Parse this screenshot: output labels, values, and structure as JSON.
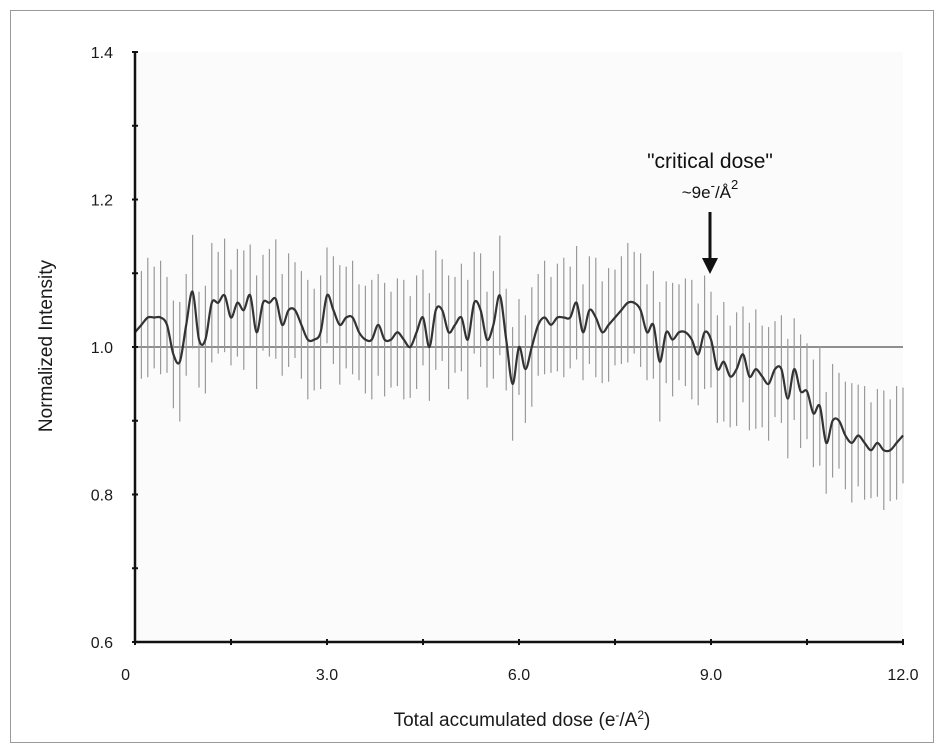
{
  "chart_data": {
    "type": "line",
    "xlabel": "Total accumulated dose (e⁻/A²)",
    "ylabel": "Normalized Intensity",
    "xlim": [
      0,
      12
    ],
    "ylim": [
      0.6,
      1.4
    ],
    "x_ticks": [
      0,
      3.0,
      6.0,
      9.0,
      12.0
    ],
    "x_tick_labels": [
      "0",
      "3.0",
      "6.0",
      "9.0",
      "12.0"
    ],
    "y_ticks": [
      0.6,
      0.8,
      1.0,
      1.2,
      1.4
    ],
    "y_tick_labels": [
      "0.6",
      "0.8",
      "1.0",
      "1.2",
      "1.4"
    ],
    "reference_line": {
      "y": 1.0
    },
    "annotation": {
      "line1": "\"critical dose\"",
      "line2": "~9e",
      "line2_sup": "-",
      "line2_mid": "/Å",
      "line2_sup2": "2",
      "x": 9.0
    },
    "series": [
      {
        "error": 0.065,
        "x": [
          0.0,
          0.1,
          0.2,
          0.3,
          0.4,
          0.5,
          0.6,
          0.7,
          0.8,
          0.9,
          1.0,
          1.1,
          1.2,
          1.3,
          1.4,
          1.5,
          1.6,
          1.7,
          1.8,
          1.9,
          2.0,
          2.1,
          2.2,
          2.3,
          2.4,
          2.5,
          2.6,
          2.7,
          2.8,
          2.9,
          3.0,
          3.1,
          3.2,
          3.3,
          3.4,
          3.5,
          3.6,
          3.7,
          3.8,
          3.9,
          4.0,
          4.1,
          4.2,
          4.3,
          4.4,
          4.5,
          4.6,
          4.7,
          4.8,
          4.9,
          5.0,
          5.1,
          5.2,
          5.3,
          5.4,
          5.5,
          5.6,
          5.7,
          5.8,
          5.9,
          6.0,
          6.1,
          6.2,
          6.3,
          6.4,
          6.5,
          6.6,
          6.7,
          6.8,
          6.9,
          7.0,
          7.1,
          7.2,
          7.3,
          7.4,
          7.5,
          7.6,
          7.7,
          7.8,
          7.9,
          8.0,
          8.1,
          8.2,
          8.3,
          8.4,
          8.5,
          8.6,
          8.7,
          8.8,
          8.9,
          9.0,
          9.1,
          9.2,
          9.3,
          9.4,
          9.5,
          9.6,
          9.7,
          9.8,
          9.9,
          10.0,
          10.1,
          10.2,
          10.3,
          10.4,
          10.5,
          10.6,
          10.7,
          10.8,
          10.9,
          11.0,
          11.1,
          11.2,
          11.3,
          11.4,
          11.5,
          11.6,
          11.7,
          11.8,
          11.9,
          12.0
        ],
        "y": [
          1.02,
          1.03,
          1.04,
          1.04,
          1.04,
          1.03,
          0.99,
          0.98,
          1.03,
          1.075,
          1.01,
          1.01,
          1.06,
          1.06,
          1.07,
          1.04,
          1.06,
          1.05,
          1.07,
          1.02,
          1.06,
          1.06,
          1.065,
          1.03,
          1.05,
          1.05,
          1.03,
          1.01,
          1.01,
          1.02,
          1.07,
          1.05,
          1.03,
          1.04,
          1.04,
          1.02,
          1.01,
          1.01,
          1.03,
          1.01,
          1.01,
          1.02,
          1.01,
          1.0,
          1.02,
          1.04,
          1.0,
          1.05,
          1.05,
          1.02,
          1.03,
          1.04,
          1.01,
          1.06,
          1.05,
          1.01,
          1.03,
          1.07,
          1.01,
          0.95,
          1.0,
          0.97,
          1.0,
          1.03,
          1.04,
          1.03,
          1.04,
          1.04,
          1.04,
          1.06,
          1.02,
          1.05,
          1.04,
          1.02,
          1.03,
          1.04,
          1.05,
          1.06,
          1.06,
          1.05,
          1.02,
          1.03,
          0.98,
          1.02,
          1.01,
          1.02,
          1.02,
          1.01,
          0.99,
          1.02,
          1.01,
          0.97,
          0.98,
          0.96,
          0.97,
          0.99,
          0.96,
          0.97,
          0.96,
          0.95,
          0.97,
          0.97,
          0.93,
          0.97,
          0.94,
          0.94,
          0.91,
          0.92,
          0.87,
          0.9,
          0.9,
          0.88,
          0.87,
          0.88,
          0.87,
          0.86,
          0.87,
          0.86,
          0.86,
          0.87,
          0.88
        ]
      }
    ]
  }
}
